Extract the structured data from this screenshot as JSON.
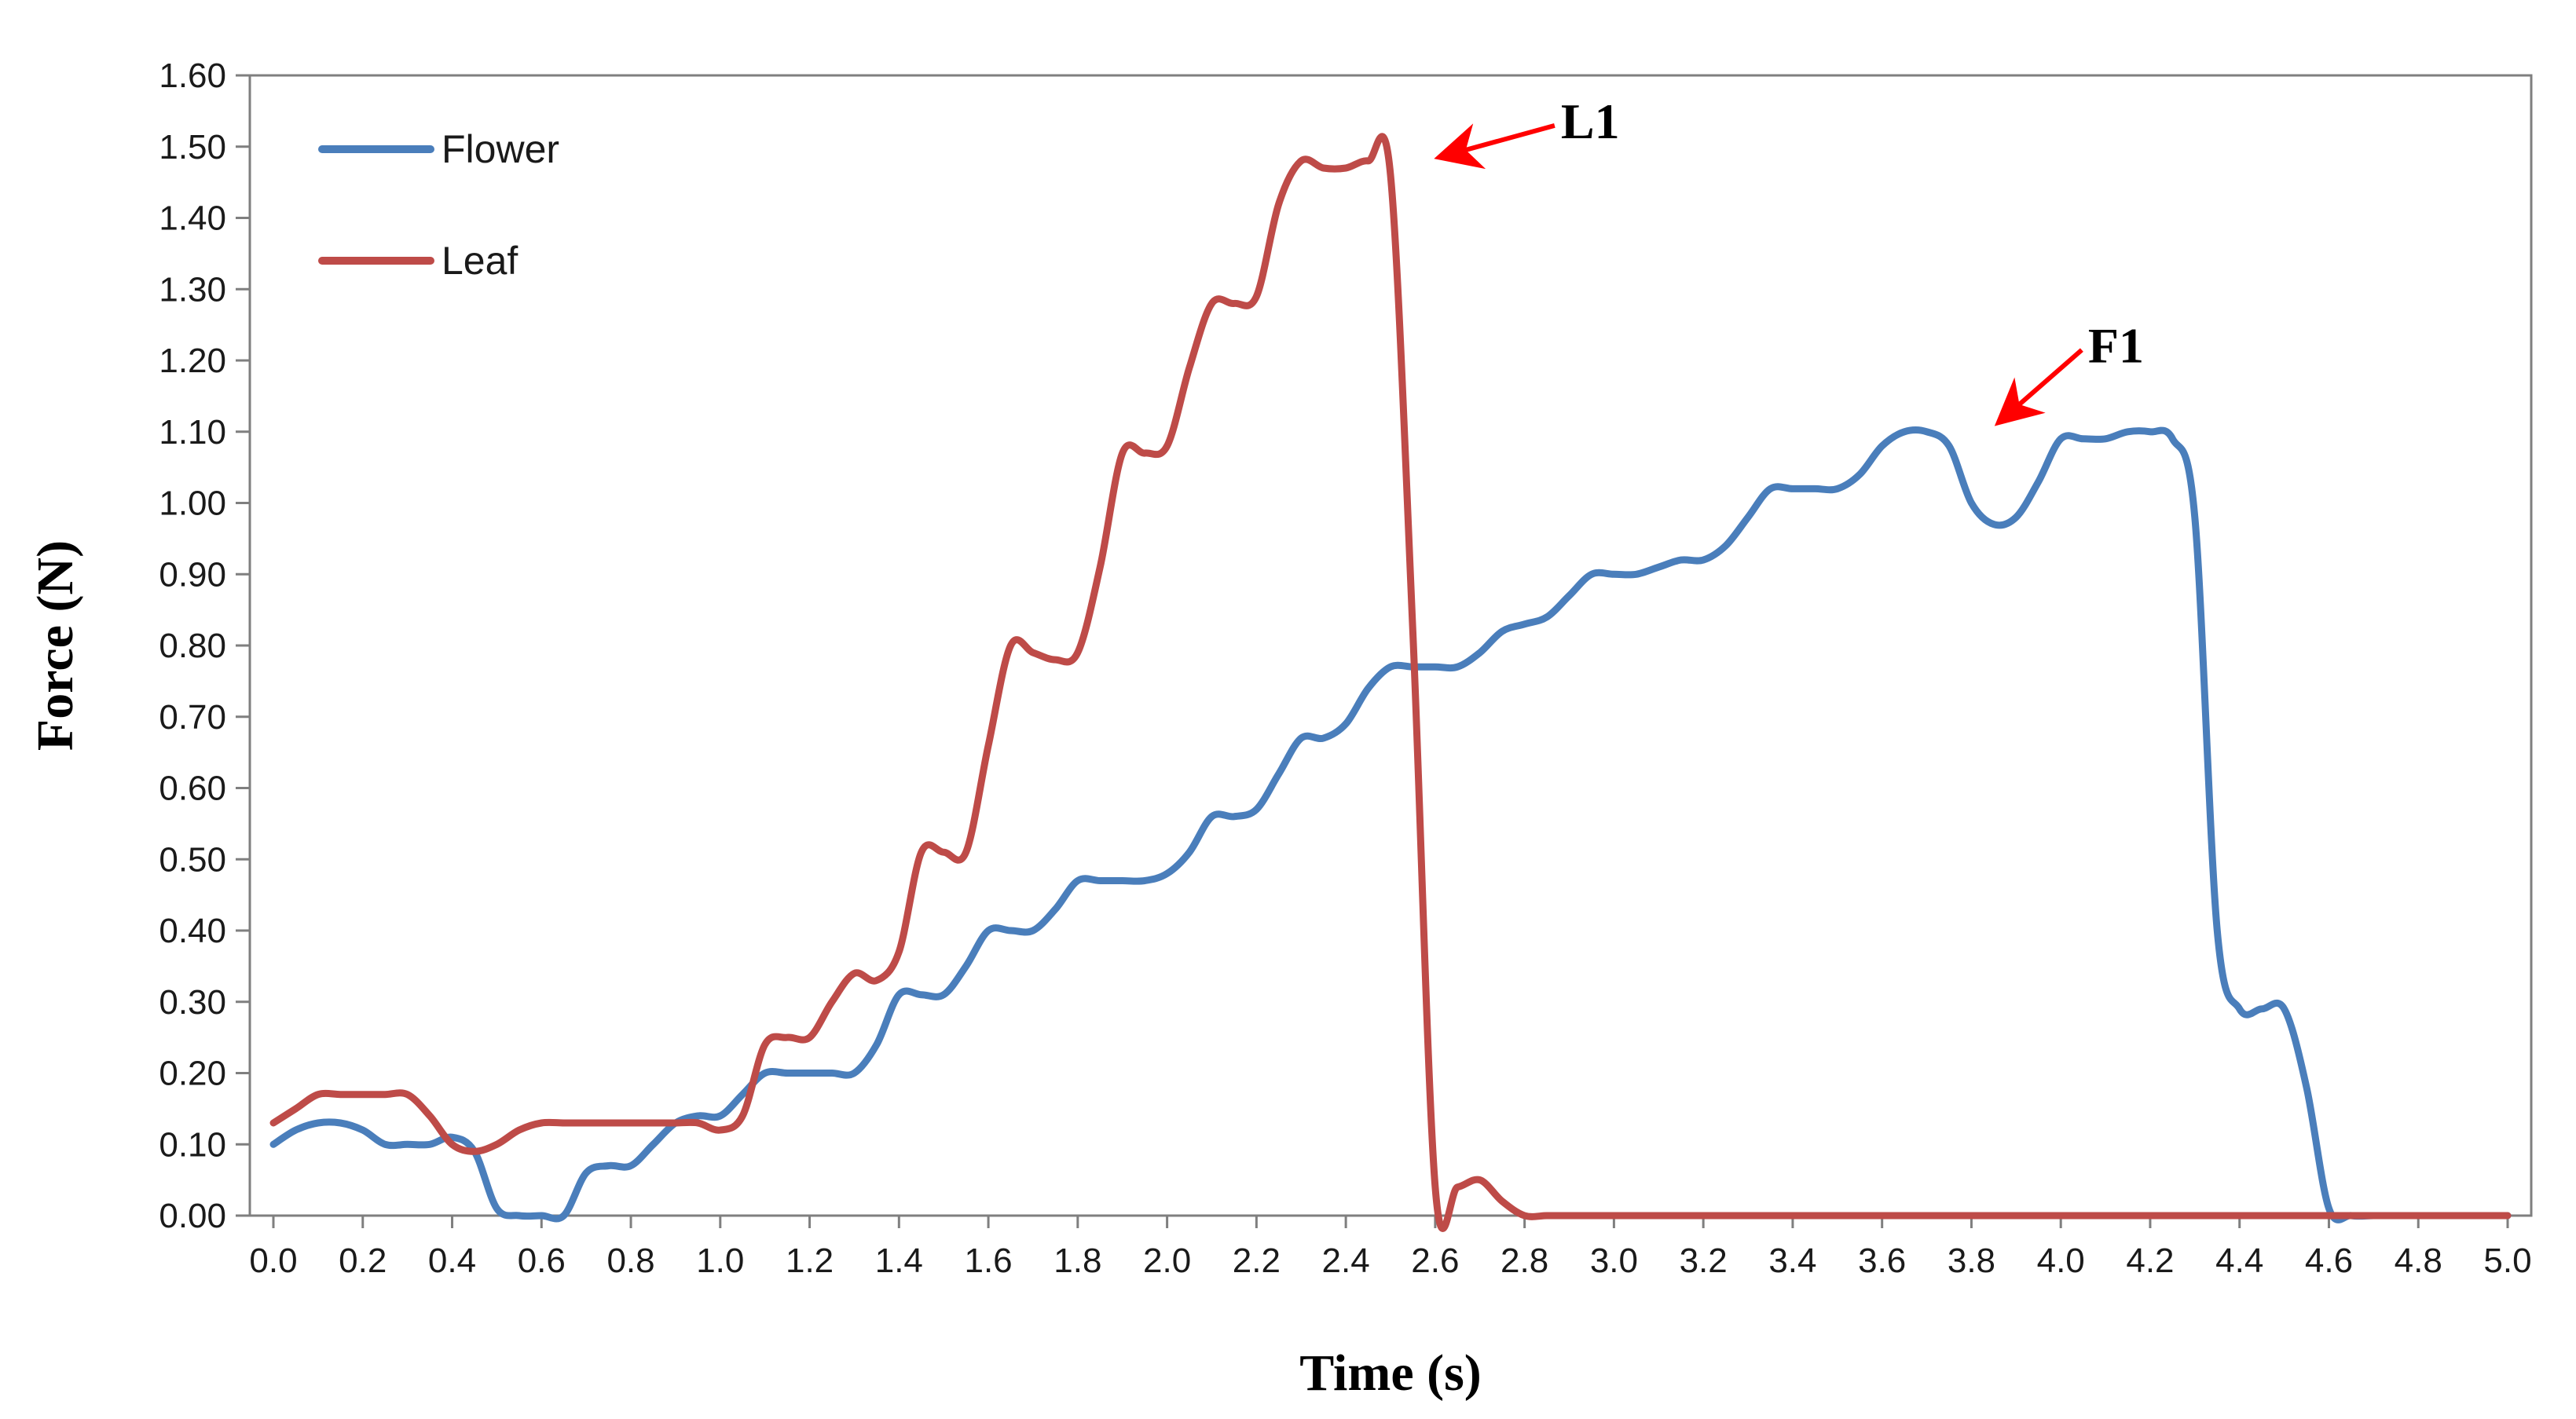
{
  "chart_data": {
    "type": "line",
    "xlabel": "Time (s)",
    "ylabel": "Force (N)",
    "xlim": [
      0.0,
      5.0
    ],
    "ylim": [
      0.0,
      1.6
    ],
    "x_ticks": [
      "0.0",
      "0.2",
      "0.4",
      "0.6",
      "0.8",
      "1.0",
      "1.2",
      "1.4",
      "1.6",
      "1.8",
      "2.0",
      "2.2",
      "2.4",
      "2.6",
      "2.8",
      "3.0",
      "3.2",
      "3.4",
      "3.6",
      "3.8",
      "4.0",
      "4.2",
      "4.4",
      "4.6",
      "4.8",
      "5.0"
    ],
    "y_ticks": [
      "0.00",
      "0.10",
      "0.20",
      "0.30",
      "0.40",
      "0.50",
      "0.60",
      "0.70",
      "0.80",
      "0.90",
      "1.00",
      "1.10",
      "1.20",
      "1.30",
      "1.40",
      "1.50",
      "1.60"
    ],
    "grid": false,
    "legend": "top-left",
    "series": [
      {
        "name": "Flower",
        "color": "#4a7ebb",
        "x": [
          0.0,
          0.05,
          0.1,
          0.15,
          0.2,
          0.25,
          0.3,
          0.35,
          0.4,
          0.45,
          0.5,
          0.55,
          0.6,
          0.65,
          0.7,
          0.75,
          0.8,
          0.85,
          0.9,
          0.95,
          1.0,
          1.05,
          1.1,
          1.15,
          1.2,
          1.25,
          1.3,
          1.35,
          1.4,
          1.45,
          1.5,
          1.55,
          1.6,
          1.65,
          1.7,
          1.75,
          1.8,
          1.85,
          1.9,
          1.95,
          2.0,
          2.05,
          2.1,
          2.15,
          2.2,
          2.25,
          2.3,
          2.35,
          2.4,
          2.45,
          2.5,
          2.55,
          2.6,
          2.65,
          2.7,
          2.75,
          2.8,
          2.85,
          2.9,
          2.95,
          3.0,
          3.05,
          3.1,
          3.15,
          3.2,
          3.25,
          3.3,
          3.35,
          3.4,
          3.45,
          3.5,
          3.55,
          3.6,
          3.65,
          3.7,
          3.75,
          3.8,
          3.85,
          3.9,
          3.95,
          4.0,
          4.05,
          4.1,
          4.15,
          4.2,
          4.25,
          4.3,
          4.35,
          4.4,
          4.45,
          4.5,
          4.55,
          4.6,
          4.65,
          4.7,
          4.75,
          4.8,
          4.85,
          4.9,
          4.95,
          5.0
        ],
        "y": [
          0.1,
          0.12,
          0.13,
          0.13,
          0.12,
          0.1,
          0.1,
          0.1,
          0.11,
          0.09,
          0.01,
          0.0,
          0.0,
          0.0,
          0.06,
          0.07,
          0.07,
          0.1,
          0.13,
          0.14,
          0.14,
          0.17,
          0.2,
          0.2,
          0.2,
          0.2,
          0.2,
          0.24,
          0.31,
          0.31,
          0.31,
          0.35,
          0.4,
          0.4,
          0.4,
          0.43,
          0.47,
          0.47,
          0.47,
          0.47,
          0.48,
          0.51,
          0.56,
          0.56,
          0.57,
          0.62,
          0.67,
          0.67,
          0.69,
          0.74,
          0.77,
          0.77,
          0.77,
          0.77,
          0.79,
          0.82,
          0.83,
          0.84,
          0.87,
          0.9,
          0.9,
          0.9,
          0.91,
          0.92,
          0.92,
          0.94,
          0.98,
          1.02,
          1.02,
          1.02,
          1.02,
          1.04,
          1.08,
          1.1,
          1.1,
          1.08,
          1.0,
          0.97,
          0.98,
          1.03,
          1.09,
          1.09,
          1.09,
          1.1,
          1.1,
          1.09,
          0.98,
          0.4,
          0.29,
          0.29,
          0.29,
          0.18,
          0.01,
          0.0,
          0.0,
          0.0,
          0.0,
          0.0,
          0.0,
          0.0,
          0.0
        ]
      },
      {
        "name": "Leaf",
        "color": "#be4b48",
        "x": [
          0.0,
          0.05,
          0.1,
          0.15,
          0.2,
          0.25,
          0.3,
          0.35,
          0.4,
          0.45,
          0.5,
          0.55,
          0.6,
          0.65,
          0.7,
          0.75,
          0.8,
          0.85,
          0.9,
          0.95,
          1.0,
          1.05,
          1.1,
          1.15,
          1.2,
          1.25,
          1.3,
          1.35,
          1.4,
          1.45,
          1.5,
          1.55,
          1.6,
          1.65,
          1.7,
          1.75,
          1.8,
          1.85,
          1.9,
          1.95,
          2.0,
          2.05,
          2.1,
          2.15,
          2.2,
          2.25,
          2.3,
          2.35,
          2.4,
          2.45,
          2.5,
          2.55,
          2.6,
          2.65,
          2.7,
          2.75,
          2.8,
          2.85,
          2.9,
          2.95,
          3.0,
          3.05,
          3.1,
          3.15,
          3.2,
          3.25,
          3.3,
          3.35,
          3.4,
          3.45,
          3.5,
          3.55,
          3.6,
          3.65,
          3.7,
          3.75,
          3.8,
          3.85,
          3.9,
          3.95,
          4.0,
          4.05,
          4.1,
          4.15,
          4.2,
          4.25,
          4.3,
          4.35,
          4.4,
          4.45,
          4.5,
          4.55,
          4.6,
          4.65,
          4.7,
          4.75,
          4.8,
          4.85,
          4.9,
          4.95,
          5.0
        ],
        "y": [
          0.13,
          0.15,
          0.17,
          0.17,
          0.17,
          0.17,
          0.17,
          0.14,
          0.1,
          0.09,
          0.1,
          0.12,
          0.13,
          0.13,
          0.13,
          0.13,
          0.13,
          0.13,
          0.13,
          0.13,
          0.12,
          0.14,
          0.24,
          0.25,
          0.25,
          0.3,
          0.34,
          0.33,
          0.37,
          0.51,
          0.51,
          0.51,
          0.66,
          0.8,
          0.79,
          0.78,
          0.79,
          0.91,
          1.07,
          1.07,
          1.08,
          1.19,
          1.28,
          1.28,
          1.29,
          1.42,
          1.48,
          1.47,
          1.47,
          1.48,
          1.46,
          0.82,
          0.04,
          0.04,
          0.05,
          0.02,
          0.0,
          0.0,
          0.0,
          0.0,
          0.0,
          0.0,
          0.0,
          0.0,
          0.0,
          0.0,
          0.0,
          0.0,
          0.0,
          0.0,
          0.0,
          0.0,
          0.0,
          0.0,
          0.0,
          0.0,
          0.0,
          0.0,
          0.0,
          0.0,
          0.0,
          0.0,
          0.0,
          0.0,
          0.0,
          0.0,
          0.0,
          0.0,
          0.0,
          0.0,
          0.0,
          0.0,
          0.0,
          0.0,
          0.0,
          0.0,
          0.0,
          0.0,
          0.0,
          0.0,
          0.0
        ]
      }
    ],
    "annotations": [
      {
        "text": "L1",
        "series": "Leaf",
        "x": 2.6,
        "y": 1.48,
        "color": "#ff0000"
      },
      {
        "text": "F1",
        "series": "Flower",
        "x": 3.85,
        "y": 1.11,
        "color": "#ff0000"
      }
    ]
  }
}
